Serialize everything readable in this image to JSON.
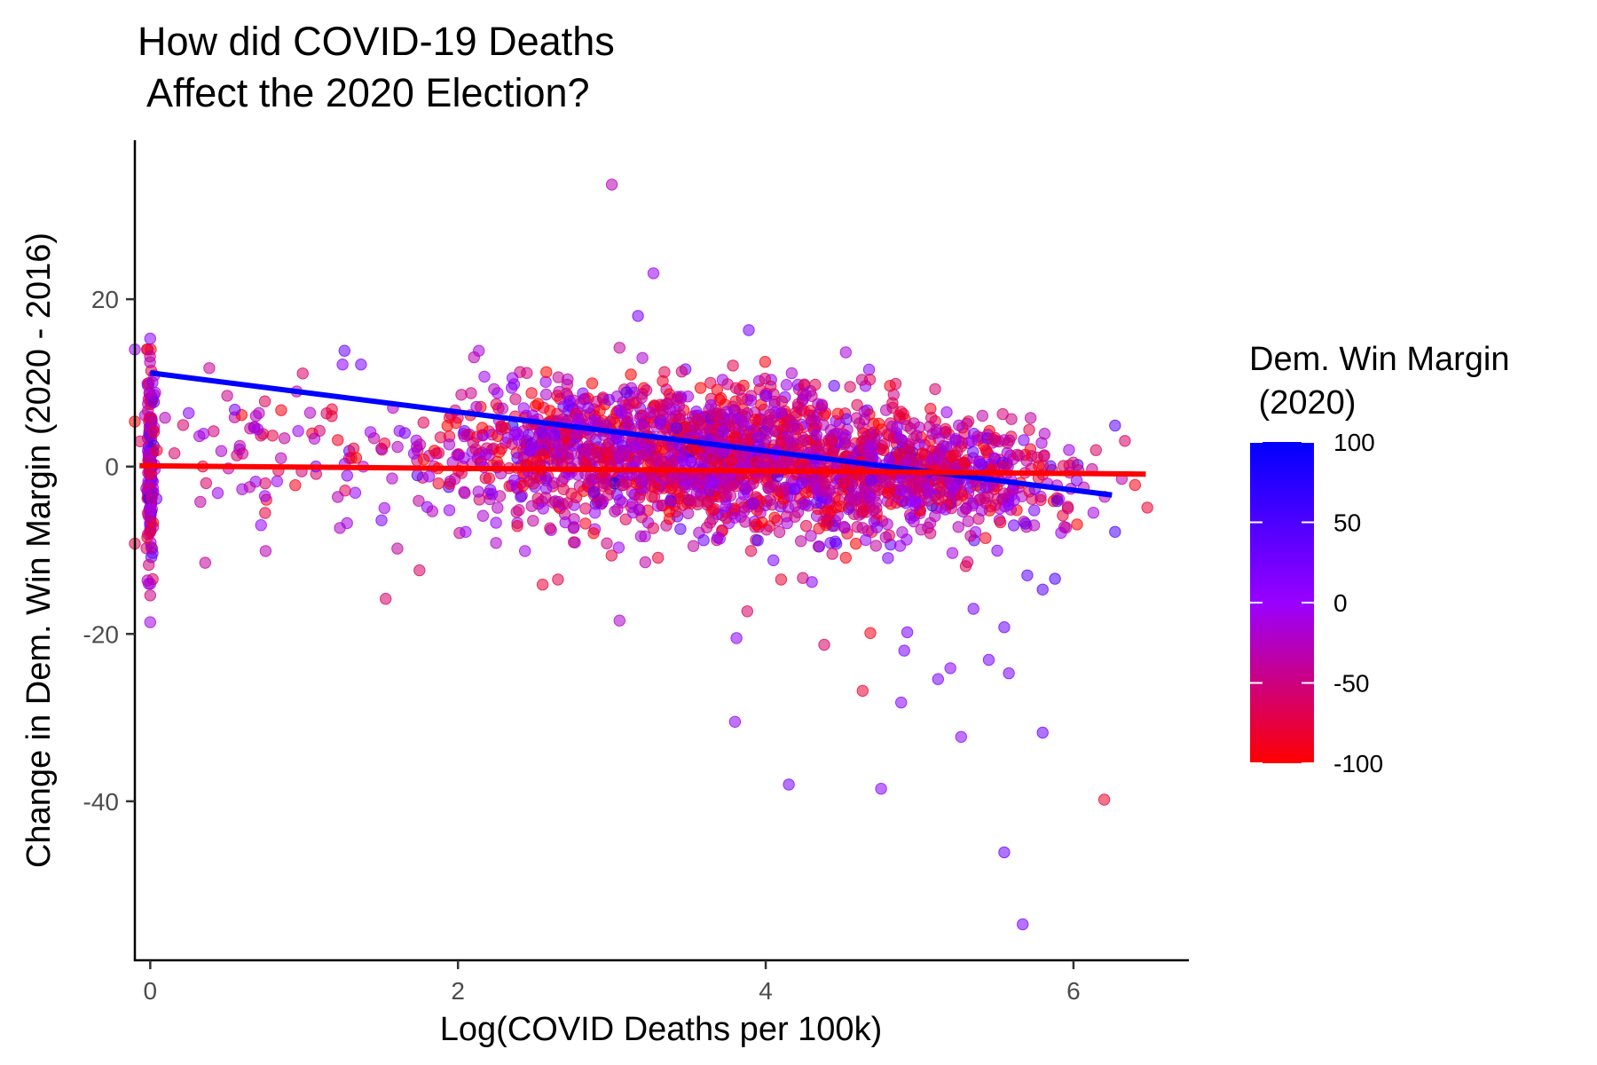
{
  "chart_data": {
    "type": "scatter",
    "title": [
      "How did COVID-19 Deaths",
      " Affect the 2020 Election?"
    ],
    "xlabel": "Log(COVID Deaths per 100k)",
    "ylabel": "Change in Dem. Win Margin (2020 - 2016)",
    "xlim": [
      -0.1,
      6.75
    ],
    "ylim": [
      -59,
      39
    ],
    "x_ticks": [
      0,
      2,
      4,
      6
    ],
    "x_tick_labels": [
      "0",
      "2",
      "4",
      "6"
    ],
    "y_ticks": [
      -40,
      -20,
      0,
      20
    ],
    "y_tick_labels": [
      "-40",
      "-20",
      "0",
      "20"
    ],
    "grid": false,
    "legend": {
      "title": [
        "Dem. Win Margin",
        " (2020)"
      ],
      "placement": "right",
      "type": "colorbar",
      "range": [
        -100,
        100
      ],
      "ticks": [
        100,
        50,
        0,
        -50,
        -100
      ],
      "tick_labels": [
        "100",
        "50",
        "0",
        "-50",
        "-100"
      ],
      "color_low": "#ff0000",
      "color_mid": "#9900ff",
      "color_high": "#0000ff"
    },
    "point_opacity": 0.55,
    "trend_lines": [
      {
        "color": "#0000ff",
        "x": [
          0,
          6.25
        ],
        "y": [
          11.2,
          -3.4
        ]
      },
      {
        "color": "#ff0000",
        "x": [
          -0.07,
          6.47
        ],
        "y": [
          0.1,
          -0.9
        ]
      }
    ],
    "notable_points": [
      {
        "x": 3.0,
        "y": 33.7,
        "margin": -30
      },
      {
        "x": 3.27,
        "y": 23.1,
        "margin": 0
      },
      {
        "x": 3.17,
        "y": 18.0,
        "margin": 20
      },
      {
        "x": 3.89,
        "y": 16.3,
        "margin": 20
      },
      {
        "x": 0.0,
        "y": 15.3,
        "margin": 10
      },
      {
        "x": 3.05,
        "y": 14.2,
        "margin": -40
      },
      {
        "x": 0.0,
        "y": -18.6,
        "margin": -10
      },
      {
        "x": 0.0,
        "y": -15.4,
        "margin": -50
      },
      {
        "x": 1.53,
        "y": -15.8,
        "margin": -60
      },
      {
        "x": 2.65,
        "y": -13.5,
        "margin": -70
      },
      {
        "x": 3.05,
        "y": -18.4,
        "margin": -20
      },
      {
        "x": 3.81,
        "y": -20.5,
        "margin": 10
      },
      {
        "x": 3.8,
        "y": -30.5,
        "margin": 10
      },
      {
        "x": 4.15,
        "y": -38.0,
        "margin": 20
      },
      {
        "x": 4.38,
        "y": -21.3,
        "margin": -60
      },
      {
        "x": 4.63,
        "y": -26.8,
        "margin": -80
      },
      {
        "x": 4.68,
        "y": -19.9,
        "margin": -90
      },
      {
        "x": 4.75,
        "y": -38.5,
        "margin": 10
      },
      {
        "x": 4.88,
        "y": -28.2,
        "margin": 10
      },
      {
        "x": 4.92,
        "y": -19.8,
        "margin": 20
      },
      {
        "x": 4.9,
        "y": -22.0,
        "margin": 20
      },
      {
        "x": 5.12,
        "y": -25.4,
        "margin": 20
      },
      {
        "x": 5.2,
        "y": -24.1,
        "margin": 10
      },
      {
        "x": 5.27,
        "y": -32.3,
        "margin": 10
      },
      {
        "x": 5.45,
        "y": -23.1,
        "margin": 20
      },
      {
        "x": 5.35,
        "y": -17.0,
        "margin": 20
      },
      {
        "x": 5.55,
        "y": -19.2,
        "margin": 30
      },
      {
        "x": 5.55,
        "y": -46.1,
        "margin": 30
      },
      {
        "x": 5.67,
        "y": -54.7,
        "margin": 20
      },
      {
        "x": 5.58,
        "y": -24.7,
        "margin": 20
      },
      {
        "x": 5.8,
        "y": -31.8,
        "margin": 30
      },
      {
        "x": 5.7,
        "y": -13.0,
        "margin": 40
      },
      {
        "x": 5.8,
        "y": -14.7,
        "margin": 40
      },
      {
        "x": 5.88,
        "y": -13.4,
        "margin": 50
      },
      {
        "x": 6.2,
        "y": -39.8,
        "margin": -80
      },
      {
        "x": 6.27,
        "y": 4.9,
        "margin": 40
      },
      {
        "x": 6.27,
        "y": -7.8,
        "margin": 50
      },
      {
        "x": 6.48,
        "y": -4.9,
        "margin": -80
      },
      {
        "x": 6.4,
        "y": -2.2,
        "margin": -90
      },
      {
        "x": -0.1,
        "y": -9.2,
        "margin": -70
      },
      {
        "x": 0.25,
        "y": 6.4,
        "margin": 10
      },
      {
        "x": 0.55,
        "y": 6.8,
        "margin": 20
      },
      {
        "x": 0.72,
        "y": -7.0,
        "margin": 0
      },
      {
        "x": 0.75,
        "y": -10.1,
        "margin": -30
      },
      {
        "x": 1.25,
        "y": 12.2,
        "margin": 10
      },
      {
        "x": 1.37,
        "y": 12.2,
        "margin": 20
      },
      {
        "x": 1.75,
        "y": -12.4,
        "margin": -60
      },
      {
        "x": 2.05,
        "y": -7.8,
        "margin": 0
      },
      {
        "x": 2.55,
        "y": -14.1,
        "margin": -80
      },
      {
        "x": 3.3,
        "y": -10.9,
        "margin": -80
      },
      {
        "x": 3.88,
        "y": -17.3,
        "margin": -60
      },
      {
        "x": 4.05,
        "y": -11.2,
        "margin": 20
      },
      {
        "x": 4.1,
        "y": -13.5,
        "margin": -80
      },
      {
        "x": 4.3,
        "y": -13.8,
        "margin": 10
      },
      {
        "x": 5.3,
        "y": -11.9,
        "margin": -70
      }
    ],
    "cloud_groups": [
      {
        "x_mean": 0.0,
        "x_sd": 0.012,
        "y_mean": -1.0,
        "y_sd": 6.5,
        "n": 150,
        "margin_mean": -20,
        "margin_sd": 45
      },
      {
        "x_mean": 0.9,
        "x_sd": 0.6,
        "y_mean": 1.5,
        "y_sd": 4.5,
        "n": 90,
        "margin_mean": -45,
        "margin_sd": 35
      },
      {
        "x_mean": 2.7,
        "x_sd": 0.5,
        "y_mean": 1.5,
        "y_sd": 4.2,
        "n": 550,
        "margin_mean": -40,
        "margin_sd": 40
      },
      {
        "x_mean": 3.8,
        "x_sd": 0.55,
        "y_mean": 0.8,
        "y_sd": 4.3,
        "n": 1100,
        "margin_mean": -40,
        "margin_sd": 40
      },
      {
        "x_mean": 4.9,
        "x_sd": 0.4,
        "y_mean": -1.0,
        "y_sd": 3.8,
        "n": 500,
        "margin_mean": -40,
        "margin_sd": 38
      },
      {
        "x_mean": 5.6,
        "x_sd": 0.25,
        "y_mean": -1.5,
        "y_sd": 3.2,
        "n": 130,
        "margin_mean": -30,
        "margin_sd": 40
      }
    ],
    "cloud_seed": 20201103
  }
}
